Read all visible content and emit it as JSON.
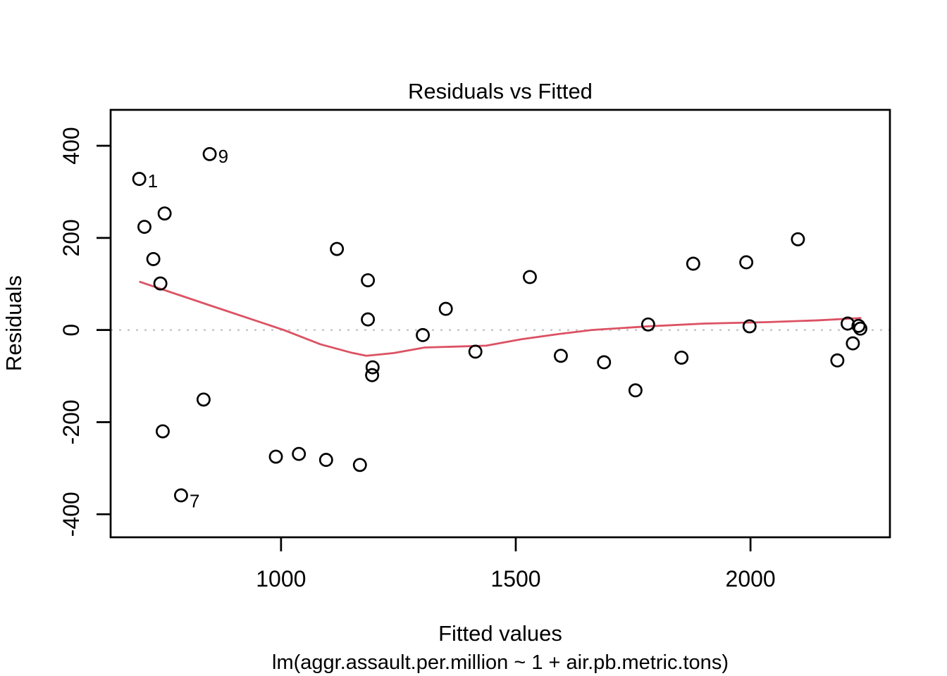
{
  "chart_data": {
    "type": "scatter",
    "title": "Residuals vs Fitted",
    "xlabel": "Fitted values",
    "sublabel": "lm(aggr.assault.per.million ~ 1 + air.pb.metric.tons)",
    "ylabel": "Residuals",
    "x_ticks": [
      1000,
      1500,
      2000
    ],
    "y_ticks": [
      -400,
      -200,
      0,
      200,
      400
    ],
    "xlim": [
      637,
      2297
    ],
    "ylim": [
      -450,
      478
    ],
    "zero_line_y": 0,
    "legend": "none",
    "grid": "off",
    "colors": {
      "points": "#000000",
      "smooth_line": "#dc5264",
      "zero_line": "#c4c4c4",
      "axis": "#000000"
    },
    "points": [
      {
        "x": 698,
        "y": 328,
        "label": "1"
      },
      {
        "x": 752,
        "y": 253
      },
      {
        "x": 709,
        "y": 224
      },
      {
        "x": 728,
        "y": 154
      },
      {
        "x": 743,
        "y": 101
      },
      {
        "x": 848,
        "y": 382,
        "label": "9"
      },
      {
        "x": 835,
        "y": -151
      },
      {
        "x": 748,
        "y": -220
      },
      {
        "x": 787,
        "y": -359,
        "label": "7",
        "label_dy": 17
      },
      {
        "x": 989,
        "y": -275
      },
      {
        "x": 1038,
        "y": -269
      },
      {
        "x": 1096,
        "y": -282
      },
      {
        "x": 1168,
        "y": -293
      },
      {
        "x": 1119,
        "y": 176
      },
      {
        "x": 1185,
        "y": 108
      },
      {
        "x": 1185,
        "y": 23
      },
      {
        "x": 1195,
        "y": -81
      },
      {
        "x": 1194,
        "y": -98
      },
      {
        "x": 1302,
        "y": -11
      },
      {
        "x": 1351,
        "y": 46
      },
      {
        "x": 1414,
        "y": -47
      },
      {
        "x": 1530,
        "y": 115
      },
      {
        "x": 1596,
        "y": -56
      },
      {
        "x": 1688,
        "y": -70
      },
      {
        "x": 1755,
        "y": -131
      },
      {
        "x": 1782,
        "y": 12
      },
      {
        "x": 1853,
        "y": -60
      },
      {
        "x": 1878,
        "y": 144
      },
      {
        "x": 1991,
        "y": 147
      },
      {
        "x": 1998,
        "y": 8
      },
      {
        "x": 2101,
        "y": 197
      },
      {
        "x": 2185,
        "y": -66
      },
      {
        "x": 2207,
        "y": 14
      },
      {
        "x": 2218,
        "y": -29
      },
      {
        "x": 2230,
        "y": 9
      },
      {
        "x": 2234,
        "y": 3
      }
    ],
    "smooth_line": [
      [
        698,
        105
      ],
      [
        850,
        53
      ],
      [
        1006,
        0
      ],
      [
        1084,
        -31
      ],
      [
        1149,
        -49
      ],
      [
        1182,
        -56
      ],
      [
        1240,
        -50
      ],
      [
        1306,
        -38
      ],
      [
        1437,
        -34
      ],
      [
        1512,
        -20
      ],
      [
        1590,
        -9
      ],
      [
        1662,
        0
      ],
      [
        1782,
        8
      ],
      [
        1902,
        14
      ],
      [
        2034,
        17
      ],
      [
        2143,
        21
      ],
      [
        2236,
        26
      ]
    ]
  }
}
